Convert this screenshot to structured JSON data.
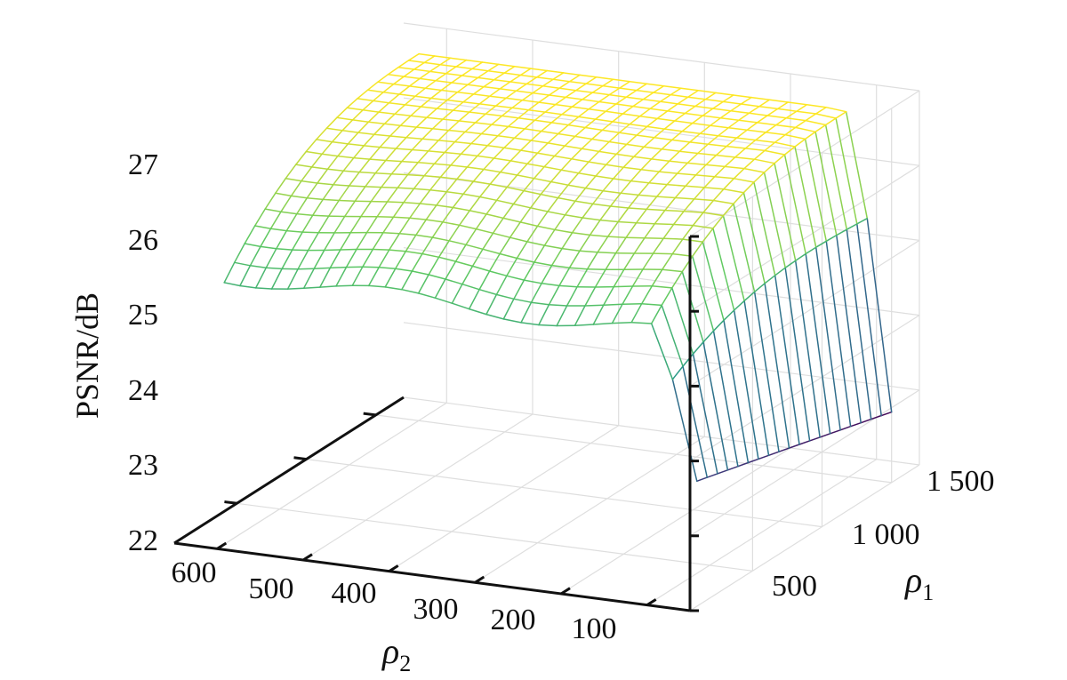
{
  "chart_data": {
    "type": "surface",
    "title": "",
    "zlabel": "PSNR/dB",
    "xlabel_symbol": "ρ",
    "xlabel_subscript": "2",
    "ylabel_symbol": "ρ",
    "ylabel_subscript": "1",
    "x_ticks": [
      600,
      500,
      400,
      300,
      200,
      100
    ],
    "x_tick_labels": [
      "600",
      "500",
      "400",
      "300",
      "200",
      "100"
    ],
    "y_ticks": [
      500,
      1000,
      1500
    ],
    "y_tick_labels": [
      "500",
      "1 000",
      "1 500"
    ],
    "z_ticks": [
      22,
      23,
      24,
      25,
      26,
      27
    ],
    "z_tick_labels": [
      "22",
      "23",
      "24",
      "25",
      "26",
      "27"
    ],
    "xlim": [
      50,
      650
    ],
    "ylim": [
      50,
      1700
    ],
    "zlim": [
      22,
      27
    ],
    "grid": true,
    "colormap": [
      "#440154",
      "#3b528b",
      "#21918c",
      "#5ec962",
      "#fde725"
    ],
    "surface": {
      "rho2_range": [
        50,
        600
      ],
      "rho1_range": [
        100,
        1500
      ],
      "rho2_samples": 28,
      "rho1_samples": 20,
      "psnr_plateau_dB": 26.9,
      "psnr_edge_dB": 25.6,
      "psnr_min_dB": 22.9,
      "note_rho2_drop_below": 75
    }
  }
}
